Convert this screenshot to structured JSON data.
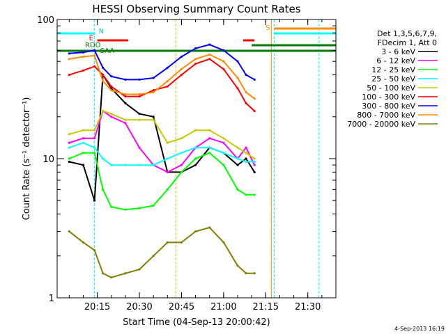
{
  "chart_data": {
    "type": "line",
    "title": "HESSI Observing Summary Count Rates",
    "xlabel": "Start Time (04-Sep-13 20:00:42)",
    "ylabel": "Count Rate (s⁻¹ detector⁻¹)",
    "yscale": "log",
    "ylim": [
      1,
      100
    ],
    "xlim": [
      "20:00:42",
      "21:40:00"
    ],
    "xtick_labels": [
      "20:15",
      "20:30",
      "20:45",
      "21:00",
      "21:15",
      "21:30"
    ],
    "ytick_labels": [
      "1",
      "10",
      "100"
    ],
    "date_stamp": "4-Sep-2013 16:19",
    "legend": {
      "header_lines": [
        "Det 1,3,5,6,7,9,",
        "FDecim 1, Att 0"
      ],
      "placement": "right"
    },
    "flag_labels": [
      "N",
      "E",
      "RDO",
      "SAA",
      "S"
    ],
    "x": [
      "20:05",
      "20:10",
      "20:14",
      "20:17",
      "20:20",
      "20:25",
      "20:30",
      "20:35",
      "20:40",
      "20:45",
      "20:50",
      "20:55",
      "21:00",
      "21:05",
      "21:08",
      "21:11",
      "21:14"
    ],
    "series": [
      {
        "name": "3 - 6 keV",
        "color": "#000000",
        "values": [
          9.5,
          9,
          5,
          40,
          32,
          25,
          21,
          20,
          8,
          8,
          9,
          12,
          11,
          9,
          10,
          8,
          null
        ]
      },
      {
        "name": "6 - 12 keV",
        "color": "#ff00ff",
        "values": [
          13,
          14,
          14,
          22,
          20,
          18,
          12,
          9,
          8,
          9,
          12,
          14,
          13,
          10,
          12,
          9,
          null
        ]
      },
      {
        "name": "12 - 25 keV",
        "color": "#00ff00",
        "values": [
          10,
          11,
          11,
          6,
          4.5,
          4.3,
          4.4,
          4.6,
          6,
          8,
          10,
          11,
          9,
          6,
          5.5,
          5.5,
          null
        ]
      },
      {
        "name": "25 - 50 keV",
        "color": "#00ffff",
        "values": [
          12,
          13,
          12,
          10,
          9,
          9,
          9,
          9,
          10,
          11,
          12,
          12,
          11,
          10,
          9.5,
          9.5,
          null
        ]
      },
      {
        "name": "50 - 100 keV",
        "color": "#c8c800",
        "values": [
          15,
          16,
          16,
          22,
          21,
          19,
          19,
          19,
          13,
          14,
          16,
          16,
          14,
          12,
          11,
          10,
          null
        ]
      },
      {
        "name": "100 - 300 keV",
        "color": "#ff0000",
        "values": [
          40,
          43,
          46,
          40,
          33,
          28,
          28,
          31,
          33,
          40,
          48,
          52,
          44,
          32,
          25,
          22,
          null
        ]
      },
      {
        "name": "300 - 800 keV",
        "color": "#0000ff",
        "values": [
          57,
          58,
          60,
          45,
          39,
          37,
          37,
          38,
          45,
          54,
          62,
          66,
          60,
          50,
          40,
          37,
          null
        ]
      },
      {
        "name": "800 - 7000 keV",
        "color": "#ff8c00",
        "values": [
          52,
          54,
          55,
          36,
          31,
          29,
          29,
          30,
          36,
          44,
          52,
          56,
          50,
          38,
          30,
          27,
          null
        ]
      },
      {
        "name": "7000 - 20000 keV",
        "color": "#808000",
        "values": [
          3,
          2.5,
          2.2,
          1.5,
          1.4,
          1.5,
          1.6,
          2,
          2.5,
          2.5,
          3,
          3.2,
          2.5,
          1.7,
          1.5,
          1.5,
          null
        ]
      }
    ]
  }
}
